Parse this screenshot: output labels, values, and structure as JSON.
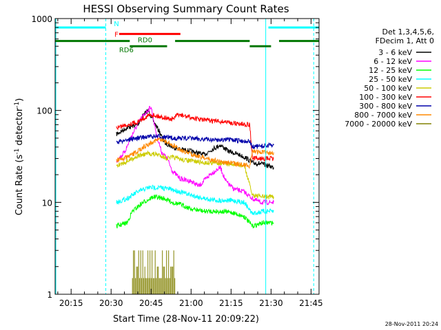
{
  "chart_data": {
    "type": "line",
    "title": "HESSI Observing Summary Count Rates",
    "xlabel": "Start Time (28-Nov-11 20:09:22)",
    "ylabel_main": "Count Rate (s",
    "ylabel_sup1": "-1",
    "ylabel_mid": " detector",
    "ylabel_sup2": "-1",
    "ylabel_end": ")",
    "x_scale": "time (HH:MM)",
    "xlim": [
      "20:09",
      "21:48"
    ],
    "y_scale": "log",
    "ylim": [
      1,
      1000
    ],
    "x_ticks": [
      "20:15",
      "20:30",
      "20:45",
      "21:00",
      "21:15",
      "21:30",
      "21:45"
    ],
    "y_ticks": [
      "1",
      "10",
      "100",
      "1000"
    ],
    "legend_header": [
      "Det 1,3,4,5,6,",
      "FDecim 1, Att 0"
    ],
    "legend_position": "right",
    "timestamp": "28-Nov-2011 20:24",
    "series": [
      {
        "name": "3 - 6 keV",
        "color": "#000000",
        "points": [
          [
            "20:32",
            55
          ],
          [
            "20:36",
            65
          ],
          [
            "20:40",
            70
          ],
          [
            "20:42",
            90
          ],
          [
            "20:44",
            100
          ],
          [
            "20:46",
            75
          ],
          [
            "20:48",
            60
          ],
          [
            "20:50",
            45
          ],
          [
            "20:53",
            40
          ],
          [
            "20:56",
            38
          ],
          [
            "21:00",
            36
          ],
          [
            "21:05",
            33
          ],
          [
            "21:08",
            38
          ],
          [
            "21:11",
            42
          ],
          [
            "21:14",
            36
          ],
          [
            "21:18",
            33
          ],
          [
            "21:21",
            30
          ],
          [
            "21:23",
            27
          ],
          [
            "21:27",
            26
          ],
          [
            "21:31",
            24
          ]
        ]
      },
      {
        "name": "6 - 12 keV",
        "color": "#ff00ff",
        "points": [
          [
            "20:32",
            28
          ],
          [
            "20:35",
            35
          ],
          [
            "20:38",
            55
          ],
          [
            "20:41",
            80
          ],
          [
            "20:43",
            95
          ],
          [
            "20:45",
            110
          ],
          [
            "20:47",
            55
          ],
          [
            "20:49",
            35
          ],
          [
            "20:51",
            30
          ],
          [
            "20:53",
            22
          ],
          [
            "20:56",
            18
          ],
          [
            "21:00",
            17
          ],
          [
            "21:03",
            15
          ],
          [
            "21:07",
            20
          ],
          [
            "21:09",
            22
          ],
          [
            "21:11",
            24
          ],
          [
            "21:13",
            17
          ],
          [
            "21:16",
            14
          ],
          [
            "21:20",
            13
          ],
          [
            "21:23",
            11
          ],
          [
            "21:26",
            10
          ],
          [
            "21:31",
            10
          ]
        ]
      },
      {
        "name": "12 - 25 keV",
        "color": "#00ff00",
        "points": [
          [
            "20:32",
            5.5
          ],
          [
            "20:36",
            6
          ],
          [
            "20:38",
            8
          ],
          [
            "20:42",
            10
          ],
          [
            "20:46",
            11.5
          ],
          [
            "20:50",
            11
          ],
          [
            "20:53",
            10
          ],
          [
            "20:56",
            9.5
          ],
          [
            "21:00",
            8.5
          ],
          [
            "21:05",
            8
          ],
          [
            "21:10",
            8
          ],
          [
            "21:15",
            7.8
          ],
          [
            "21:20",
            7
          ],
          [
            "21:23",
            5.5
          ],
          [
            "21:27",
            6
          ],
          [
            "21:31",
            6
          ]
        ]
      },
      {
        "name": "25 - 50 keV",
        "color": "#00ffff",
        "points": [
          [
            "20:32",
            10
          ],
          [
            "20:36",
            11
          ],
          [
            "20:40",
            13
          ],
          [
            "20:44",
            14.5
          ],
          [
            "20:48",
            14.5
          ],
          [
            "20:52",
            14
          ],
          [
            "20:56",
            13
          ],
          [
            "21:00",
            12
          ],
          [
            "21:05",
            11
          ],
          [
            "21:10",
            10.5
          ],
          [
            "21:15",
            10.5
          ],
          [
            "21:20",
            10
          ],
          [
            "21:23",
            7.5
          ],
          [
            "21:27",
            8
          ],
          [
            "21:31",
            8
          ]
        ]
      },
      {
        "name": "50 - 100 keV",
        "color": "#cccc00",
        "points": [
          [
            "20:32",
            25
          ],
          [
            "20:36",
            28
          ],
          [
            "20:40",
            32
          ],
          [
            "20:44",
            34
          ],
          [
            "20:48",
            33
          ],
          [
            "20:51",
            30
          ],
          [
            "20:53",
            31
          ],
          [
            "20:57",
            29
          ],
          [
            "21:01",
            28
          ],
          [
            "21:05",
            27
          ],
          [
            "21:10",
            27
          ],
          [
            "21:15",
            26
          ],
          [
            "21:20",
            25
          ],
          [
            "21:23",
            12
          ],
          [
            "21:27",
            11.5
          ],
          [
            "21:31",
            11.5
          ]
        ]
      },
      {
        "name": "100 - 300 keV",
        "color": "#ff0000",
        "points": [
          [
            "20:32",
            65
          ],
          [
            "20:36",
            70
          ],
          [
            "20:40",
            75
          ],
          [
            "20:43",
            85
          ],
          [
            "20:45",
            90
          ],
          [
            "20:49",
            85
          ],
          [
            "20:53",
            80
          ],
          [
            "20:55",
            90
          ],
          [
            "20:59",
            85
          ],
          [
            "21:03",
            80
          ],
          [
            "21:08",
            77
          ],
          [
            "21:13",
            75
          ],
          [
            "21:17",
            72
          ],
          [
            "21:22",
            70
          ],
          [
            "21:23",
            30
          ],
          [
            "21:27",
            30
          ],
          [
            "21:31",
            30
          ]
        ]
      },
      {
        "name": "300 - 800 keV",
        "color": "#0000aa",
        "points": [
          [
            "20:32",
            45
          ],
          [
            "20:36",
            48
          ],
          [
            "20:40",
            50
          ],
          [
            "20:44",
            52
          ],
          [
            "20:48",
            52
          ],
          [
            "20:53",
            50
          ],
          [
            "20:58",
            50
          ],
          [
            "21:03",
            49
          ],
          [
            "21:08",
            48
          ],
          [
            "21:13",
            48
          ],
          [
            "21:18",
            47
          ],
          [
            "21:22",
            46
          ],
          [
            "21:23",
            40
          ],
          [
            "21:27",
            41
          ],
          [
            "21:31",
            42
          ]
        ]
      },
      {
        "name": "800 - 7000 keV",
        "color": "#ff8800",
        "points": [
          [
            "20:32",
            29
          ],
          [
            "20:35",
            30
          ],
          [
            "20:38",
            33
          ],
          [
            "20:41",
            38
          ],
          [
            "20:44",
            43
          ],
          [
            "20:47",
            48
          ],
          [
            "20:50",
            47
          ],
          [
            "20:53",
            42
          ],
          [
            "20:57",
            36
          ],
          [
            "21:01",
            33
          ],
          [
            "21:06",
            30
          ],
          [
            "21:10",
            28
          ],
          [
            "21:14",
            27
          ],
          [
            "21:18",
            26
          ],
          [
            "21:22",
            25
          ],
          [
            "21:23",
            36
          ],
          [
            "21:27",
            35
          ],
          [
            "21:31",
            35
          ]
        ]
      },
      {
        "name": "7000 - 20000 keV",
        "color": "#808000",
        "points": []
      }
    ],
    "decim_bars_7000": {
      "x_start": "20:38",
      "x_end": "20:54",
      "levels": [
        1.5,
        2,
        3
      ]
    },
    "overlays": {
      "N": {
        "label": "N",
        "color": "#00ffff",
        "y": 800,
        "segments": [
          [
            "20:09",
            "20:28"
          ],
          [
            "21:29",
            "21:48"
          ]
        ]
      },
      "F": {
        "label": "F",
        "color": "#ff0000",
        "y": 680,
        "segments": [
          [
            "20:33",
            "20:56"
          ]
        ]
      },
      "RD0": {
        "label": "RD0",
        "color": "#007700",
        "y": 570,
        "segments": [
          [
            "20:09",
            "20:37"
          ],
          [
            "20:54",
            "21:22"
          ],
          [
            "21:33",
            "21:48"
          ]
        ]
      },
      "RD6": {
        "label": "RD6",
        "color": "#007700",
        "y": 500,
        "segments": [
          [
            "20:37",
            "20:51"
          ],
          [
            "21:22",
            "21:30"
          ]
        ]
      }
    },
    "vlines_solid": [
      "21:28"
    ],
    "vlines_dashed": [
      "20:28",
      "21:46"
    ],
    "grid": false
  }
}
